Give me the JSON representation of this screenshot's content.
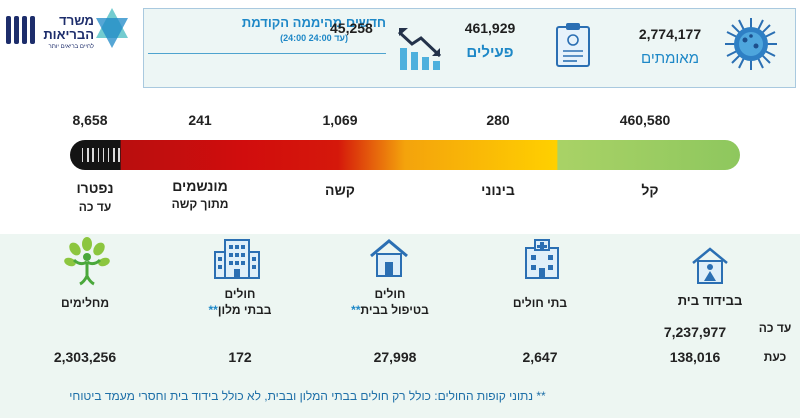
{
  "header": {
    "logo": {
      "name_line1": "משרד",
      "name_line2": "הבריאות",
      "slogan": "לחיים בריאים יותר"
    },
    "confirmed": {
      "value": "2,774,177",
      "label": "מאומתים",
      "icon": "virus-icon"
    },
    "active": {
      "value": "461,929",
      "label": "פעילים",
      "icon": "clipboard-icon"
    },
    "new_cases": {
      "title": "חדשים מהיממה הקודמת",
      "subtitle": "(24:00 עד 24:00)",
      "value": "45,258",
      "icon": "bar-chart-down-icon"
    }
  },
  "severity": {
    "levels": [
      {
        "label": "קל",
        "value": "460,580",
        "color": "#8ec75e"
      },
      {
        "label": "בינוני",
        "value": "280",
        "color": "#ffd000"
      },
      {
        "label": "קשה",
        "value": "1,069",
        "color": "#d5180b"
      },
      {
        "label": "מונשמים",
        "sublabel": "מתוך קשה",
        "value": "241",
        "color": "#b90e0e"
      },
      {
        "label": "נפטרו",
        "sublabel": "עד כה",
        "value": "8,658",
        "color": "#141414"
      }
    ]
  },
  "bottom": {
    "isolation": {
      "label": "בבידוד בית",
      "until_label": "עד כה",
      "until_value": "7,237,977",
      "now_label": "כעת",
      "now_value": "138,016",
      "icon": "house-person-icon"
    },
    "hospitals": {
      "label": "בתי חולים",
      "value": "2,647",
      "icon": "hospital-icon"
    },
    "home_care": {
      "label1": "חולים",
      "label2": "בטיפול בבית",
      "stars": "**",
      "value": "27,998",
      "icon": "home-icon"
    },
    "hotels": {
      "label1": "חולים",
      "label2": "בבתי מלון",
      "stars": "**",
      "value": "172",
      "icon": "hotel-icon"
    },
    "recovered": {
      "label": "מחלימים",
      "value": "2,303,256",
      "icon": "recovered-person-icon"
    },
    "footnote": "** נתוני קופות החולים: כולל רק חולים בבתי המלון ובבית, לא כולל בידוד בית וחסרי מעמד ביטוחי"
  },
  "colors": {
    "accent_blue": "#1e88c7",
    "navy": "#1d2d6b",
    "panel_bg": "#edf6f2"
  }
}
